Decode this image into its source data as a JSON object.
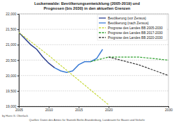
{
  "chart_data": {
    "type": "line",
    "title": "Luckenwalde: Bevölkerungsentwicklung (2005-2019) und",
    "subtitle": "Prognosen (bis 2030) in den aktuellen Grenzen",
    "annotations": [
      "by Hans G. Oberlack",
      "Quellen: Daten des Amtes für Statistik Berlin-Brandenburg, Landesamt für Bauen und Verkehr"
    ],
    "xlim": [
      2005,
      2030
    ],
    "xticks": [
      2005,
      2010,
      2015,
      2020,
      2030
    ],
    "ylim": [
      19000,
      22000
    ],
    "yticks": [
      {
        "value": 19000,
        "label": "19,000"
      },
      {
        "value": 19500,
        "label": "19,500"
      },
      {
        "value": 20000,
        "label": "20,000"
      },
      {
        "value": 20500,
        "label": "20,500"
      },
      {
        "value": 21000,
        "label": "21,000"
      },
      {
        "value": 21500,
        "label": "21,500"
      },
      {
        "value": 22000,
        "label": "22,000"
      }
    ],
    "grid": true,
    "legend": "upper right",
    "series": [
      {
        "name": "Bevölkerung (vor Zensus)",
        "color": "#2b3f8f",
        "line_style": "solid",
        "x": [
          2005,
          2006,
          2007,
          2008,
          2009,
          2010,
          2011
        ],
        "values": [
          21400,
          21200,
          21000,
          20850,
          20600,
          20400,
          20250
        ]
      },
      {
        "name": "Bevölkerung (nach Zensus)",
        "color": "#3a7bd5",
        "line_style": "solid",
        "x": [
          2011,
          2012,
          2013,
          2014,
          2015,
          2016,
          2017,
          2018,
          2019
        ],
        "values": [
          20250,
          20150,
          20100,
          20150,
          20350,
          20450,
          20450,
          20550,
          20850
        ]
      },
      {
        "name": "Prognose des Landes BB 2005-2030",
        "color": "#c8d93a",
        "line_style": "dashed",
        "x": [
          2005,
          2010,
          2015,
          2020
        ],
        "values": [
          21400,
          20650,
          19850,
          19050
        ]
      },
      {
        "name": "Prognose des Landes BB 2017-2030",
        "color": "#2ca02c",
        "line_style": "dashed",
        "x": [
          2017,
          2020,
          2025,
          2030
        ],
        "values": [
          20450,
          20600,
          20600,
          20500
        ]
      },
      {
        "name": "Prognose des Landes BB 2020-2030",
        "color": "#3a3a3a",
        "line_style": "dashed",
        "x": [
          2020,
          2025,
          2030
        ],
        "values": [
          20600,
          20350,
          20000
        ]
      }
    ]
  }
}
